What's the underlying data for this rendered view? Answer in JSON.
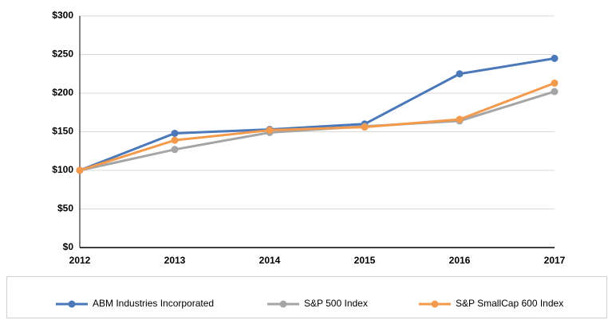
{
  "chart_data": {
    "type": "line",
    "categories": [
      "2012",
      "2013",
      "2014",
      "2015",
      "2016",
      "2017"
    ],
    "series": [
      {
        "name": "ABM Industries Incorporated",
        "color": "#4a78b8",
        "values": [
          100,
          148,
          153,
          160,
          225,
          245
        ]
      },
      {
        "name": "S&P 500 Index",
        "color": "#a5a5a5",
        "values": [
          100,
          127,
          149,
          157,
          164,
          202
        ]
      },
      {
        "name": "S&P SmallCap 600 Index",
        "color": "#f39a4c",
        "values": [
          100,
          139,
          152,
          156,
          166,
          213
        ]
      }
    ],
    "ylim": [
      0,
      300
    ],
    "yticks": [
      {
        "value": 0,
        "label": "$0"
      },
      {
        "value": 50,
        "label": "$50"
      },
      {
        "value": 100,
        "label": "$100"
      },
      {
        "value": 150,
        "label": "$150"
      },
      {
        "value": 200,
        "label": "$200"
      },
      {
        "value": 250,
        "label": "$250"
      },
      {
        "value": 300,
        "label": "$300"
      }
    ],
    "grid": true,
    "legend": "bottom"
  }
}
